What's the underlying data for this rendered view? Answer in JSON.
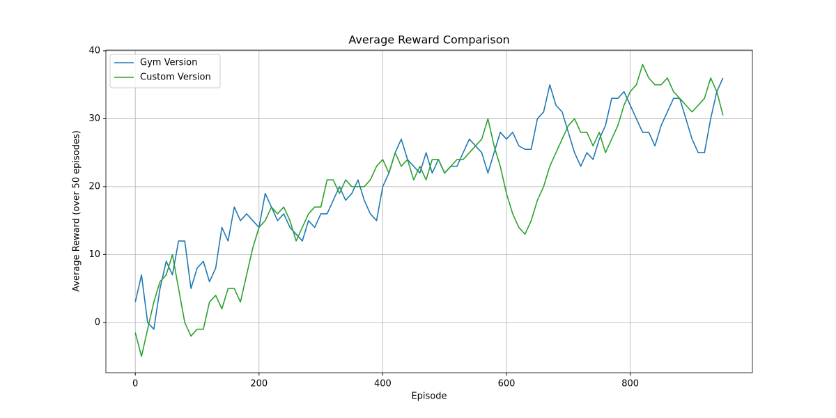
{
  "chart_data": {
    "type": "line",
    "title": "Average Reward Comparison",
    "x_label": "Episode",
    "y_label": "Average Reward (over 50 episodes)",
    "x": [
      0,
      10,
      20,
      30,
      40,
      50,
      60,
      70,
      80,
      90,
      100,
      110,
      120,
      130,
      140,
      150,
      160,
      170,
      180,
      190,
      200,
      210,
      220,
      230,
      240,
      250,
      260,
      270,
      280,
      290,
      300,
      310,
      320,
      330,
      340,
      350,
      360,
      370,
      380,
      390,
      400,
      410,
      420,
      430,
      440,
      450,
      460,
      470,
      480,
      490,
      500,
      510,
      520,
      530,
      540,
      550,
      560,
      570,
      580,
      590,
      600,
      610,
      620,
      630,
      640,
      650,
      660,
      670,
      680,
      690,
      700,
      710,
      720,
      730,
      740,
      750,
      760,
      770,
      780,
      790,
      800,
      810,
      820,
      830,
      840,
      850,
      860,
      870,
      880,
      890,
      900,
      910,
      920,
      930,
      940,
      950
    ],
    "series": [
      {
        "name": "Gym Version",
        "color": "#1f77b4",
        "values": [
          3,
          7,
          0,
          -1,
          5,
          9,
          7,
          12,
          12,
          5,
          8,
          9,
          6,
          8,
          14,
          12,
          17,
          15,
          16,
          15,
          14,
          19,
          17,
          15,
          16,
          14,
          13,
          12,
          15,
          14,
          16,
          16,
          18,
          20,
          18,
          19,
          21,
          18,
          16,
          15,
          20,
          22,
          25,
          27,
          24,
          23,
          22,
          25,
          22,
          24,
          22,
          23,
          23,
          25,
          27,
          26,
          25,
          22,
          25,
          28,
          27,
          28,
          26,
          25.5,
          25.5,
          30,
          31,
          35,
          32,
          31,
          28,
          25,
          23,
          25,
          24,
          27,
          29,
          33,
          33,
          34,
          32,
          30,
          28,
          28,
          26,
          29,
          31,
          33,
          33,
          30,
          27,
          25,
          25,
          30,
          34,
          36
        ]
      },
      {
        "name": "Custom Version",
        "color": "#2ca02c",
        "values": [
          -1.5,
          -5,
          -1,
          3,
          6,
          7,
          10,
          5,
          0,
          -2,
          -1,
          -1,
          3,
          4,
          2,
          5,
          5,
          3,
          7,
          11,
          14,
          15,
          17,
          16,
          17,
          15,
          12,
          14,
          16,
          17,
          17,
          21,
          21,
          19,
          21,
          20,
          20,
          20,
          21,
          23,
          24,
          22,
          25,
          23,
          24,
          21,
          23,
          21,
          24,
          24,
          22,
          23,
          24,
          24,
          25,
          26,
          27,
          30,
          26,
          23,
          19,
          16,
          14,
          13,
          15,
          18,
          20,
          23,
          25,
          27,
          29,
          30,
          28,
          28,
          26,
          28,
          25,
          27,
          29,
          32,
          34,
          35,
          38,
          36,
          35,
          35,
          36,
          34,
          33,
          32,
          31,
          32,
          33,
          36,
          34,
          30.5
        ]
      }
    ],
    "xlim": [
      -47.5,
      997.5
    ],
    "ylim": [
      -7.4,
      40.1
    ],
    "xticks": [
      0,
      200,
      400,
      600,
      800
    ],
    "yticks": [
      0,
      10,
      20,
      30,
      40
    ],
    "grid": true,
    "legend": "upper left"
  }
}
